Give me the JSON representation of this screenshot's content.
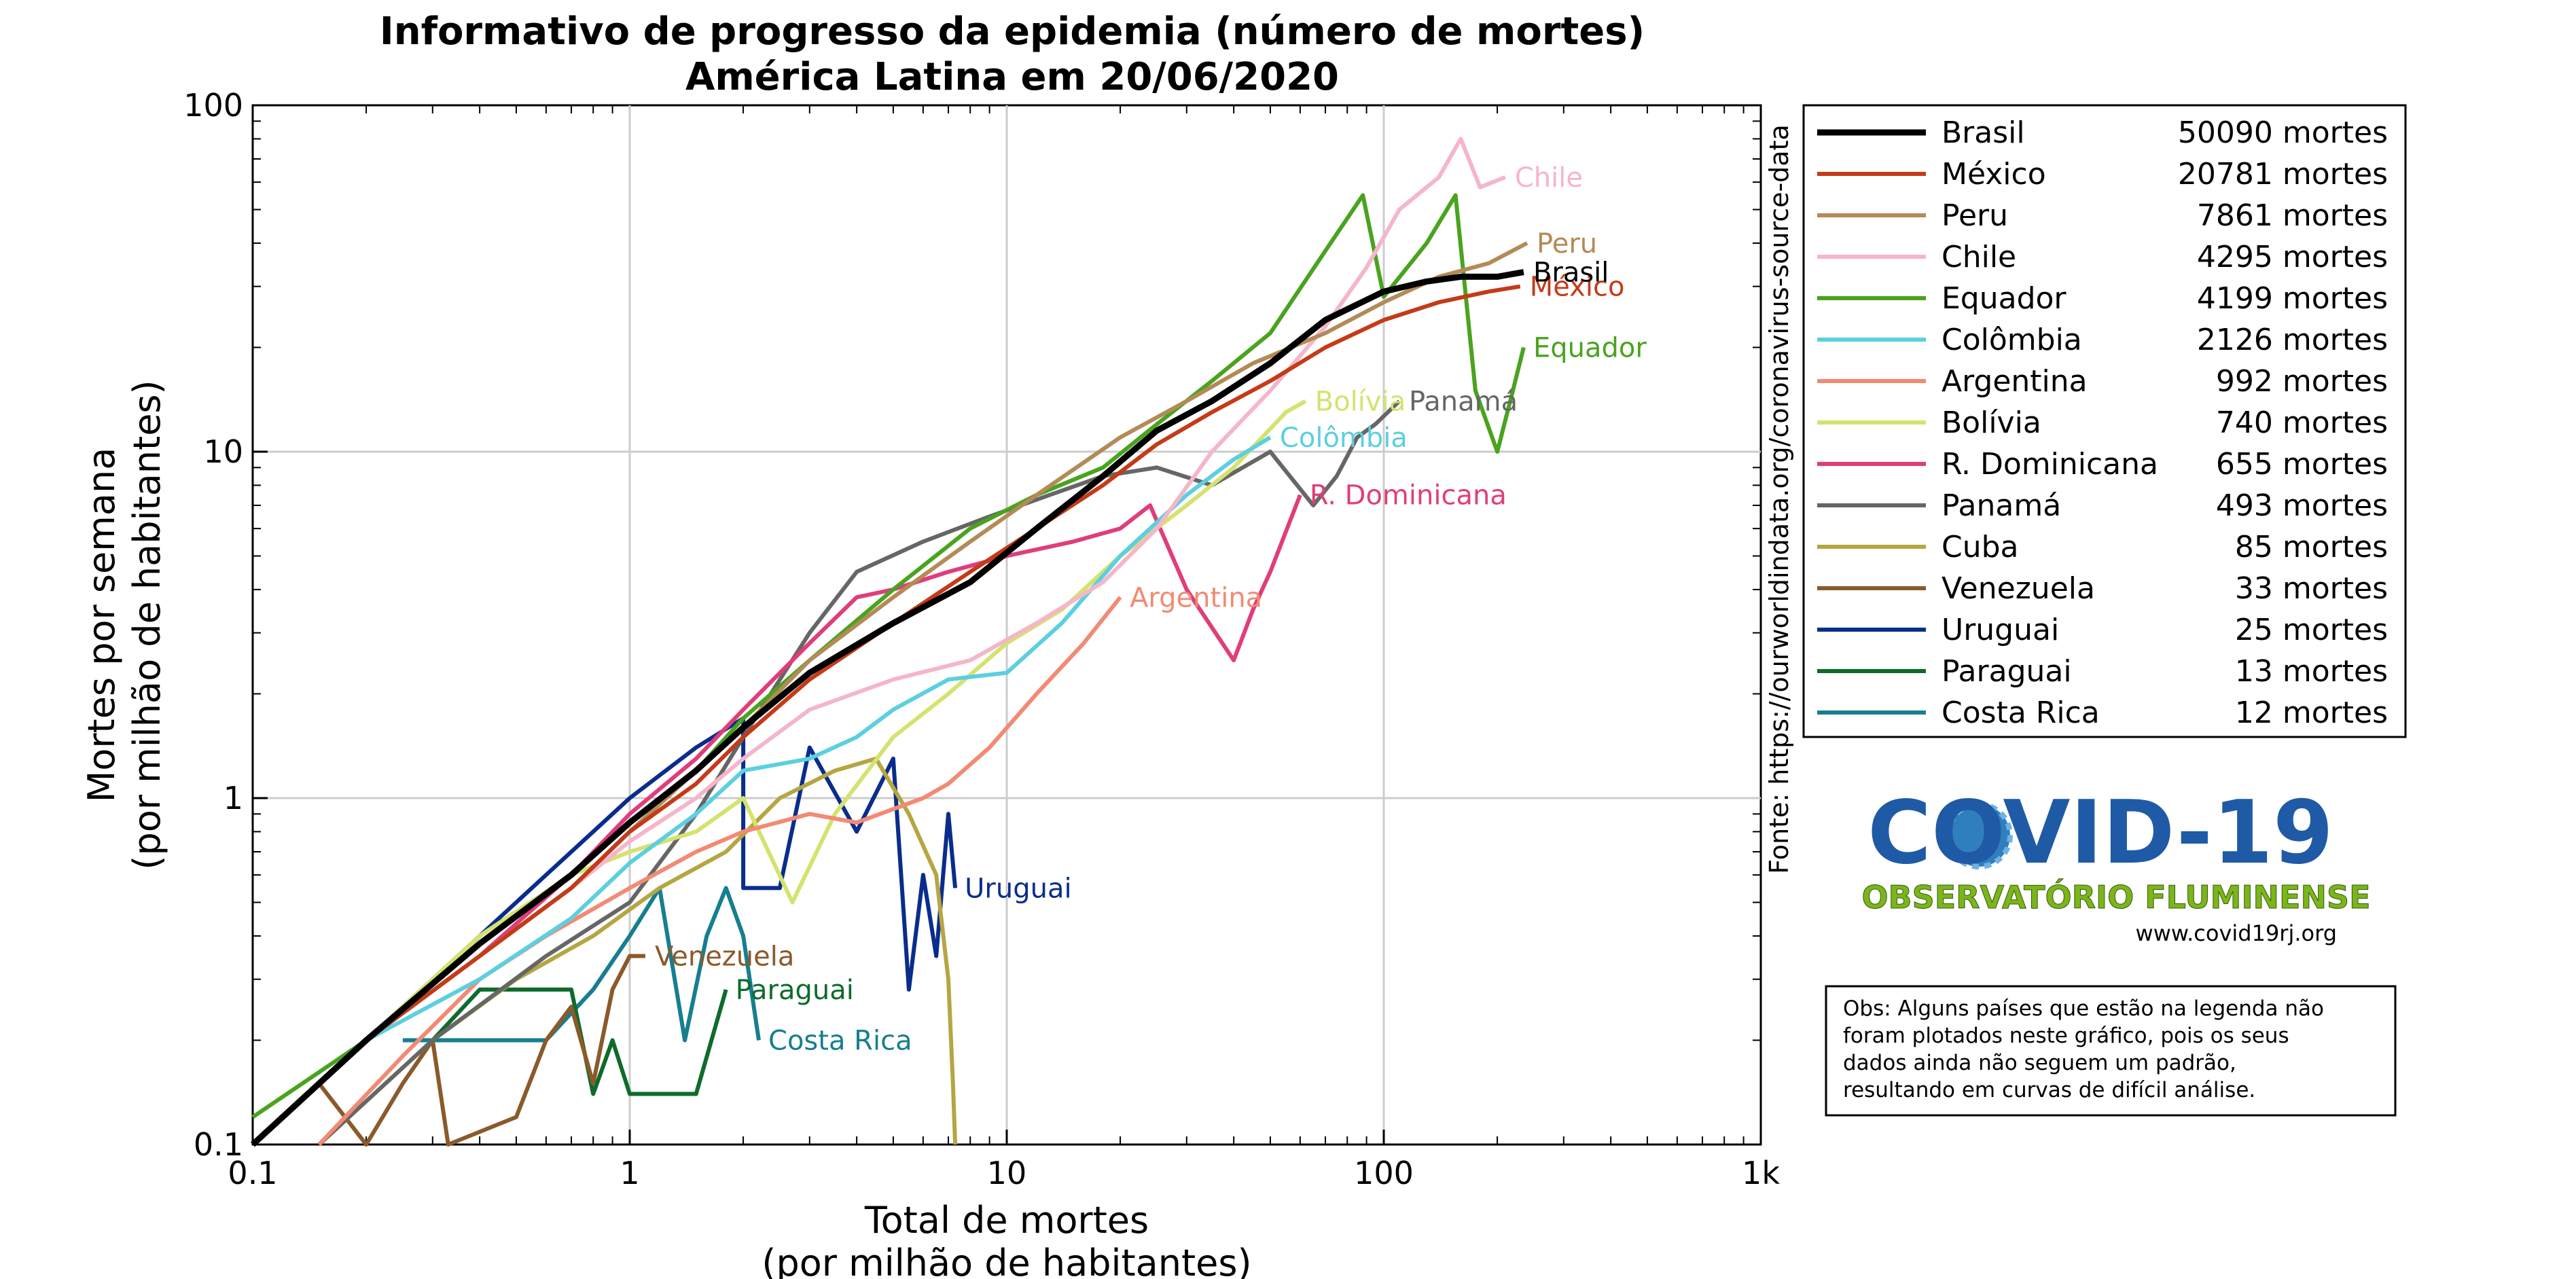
{
  "chart_data": {
    "type": "line",
    "title": "Informativo de progresso da epidemia (número de mortes)",
    "subtitle": "América Latina em 20/06/2020",
    "xlabel": "Total de mortes",
    "xlabel_sub": "(por milhão de habitantes)",
    "ylabel": "Mortes por semana",
    "ylabel_sub": "(por milhão de habitantes)",
    "x_scale": "log",
    "y_scale": "log",
    "xlim": [
      0.1,
      1000
    ],
    "ylim": [
      0.1,
      100
    ],
    "x_ticks": [
      {
        "value": 0.1,
        "label": "0.1"
      },
      {
        "value": 1,
        "label": "1"
      },
      {
        "value": 10,
        "label": "10"
      },
      {
        "value": 100,
        "label": "100"
      },
      {
        "value": 1000,
        "label": "1k"
      }
    ],
    "y_ticks": [
      {
        "value": 0.1,
        "label": "0.1"
      },
      {
        "value": 1,
        "label": "1"
      },
      {
        "value": 10,
        "label": "10"
      },
      {
        "value": 100,
        "label": "100"
      }
    ],
    "grid": true,
    "legend_position": "right",
    "source": "Fonte: https://ourworldindata.org/coronavirus-source-data",
    "series": [
      {
        "name": "Brasil",
        "deaths": "50090 mortes",
        "color": "#000000",
        "end_label": "Brasil",
        "x": [
          0.1,
          0.2,
          0.4,
          0.7,
          1.0,
          1.5,
          2.0,
          3.0,
          5.0,
          8.0,
          12,
          18,
          25,
          35,
          50,
          70,
          100,
          130,
          160,
          200,
          235
        ],
        "y": [
          0.1,
          0.2,
          0.38,
          0.6,
          0.85,
          1.2,
          1.6,
          2.3,
          3.2,
          4.2,
          6.0,
          8.5,
          11.5,
          14,
          18,
          24,
          29,
          31,
          32,
          32,
          33
        ]
      },
      {
        "name": "México",
        "deaths": "20781 mortes",
        "color": "#c43b18",
        "end_label": "México",
        "x": [
          0.1,
          0.2,
          0.4,
          0.7,
          1.0,
          1.5,
          2.0,
          3.0,
          5.0,
          8.0,
          12,
          18,
          25,
          35,
          50,
          70,
          100,
          140,
          190,
          230
        ],
        "y": [
          0.1,
          0.2,
          0.35,
          0.55,
          0.8,
          1.1,
          1.5,
          2.2,
          3.2,
          4.5,
          6.0,
          8.0,
          10.5,
          13,
          16,
          20,
          24,
          27,
          29,
          30
        ]
      },
      {
        "name": "Peru",
        "deaths": "7861 mortes",
        "color": "#b38b57",
        "end_label": "Peru",
        "x": [
          0.1,
          0.2,
          0.4,
          0.7,
          1.0,
          1.5,
          2.0,
          3.0,
          5.0,
          8.0,
          12,
          20,
          30,
          45,
          70,
          100,
          140,
          190,
          240
        ],
        "y": [
          0.1,
          0.2,
          0.35,
          0.55,
          0.8,
          1.2,
          1.6,
          2.5,
          3.8,
          5.5,
          7.5,
          11,
          14,
          18,
          22,
          27,
          32,
          35,
          40
        ]
      },
      {
        "name": "Chile",
        "deaths": "4295 mortes",
        "color": "#f4b6ca",
        "end_label": "Chile",
        "x": [
          0.1,
          0.2,
          0.4,
          0.7,
          1.0,
          1.5,
          2.0,
          3.0,
          5.0,
          8.0,
          12,
          18,
          25,
          35,
          50,
          70,
          90,
          110,
          140,
          160,
          180,
          210
        ],
        "y": [
          0.1,
          0.2,
          0.35,
          0.55,
          0.75,
          1.0,
          1.3,
          1.8,
          2.2,
          2.5,
          3.2,
          4.2,
          6.0,
          10,
          15,
          23,
          34,
          50,
          62,
          80,
          58,
          62
        ]
      },
      {
        "name": "Equador",
        "deaths": "4199 mortes",
        "color": "#4aa31e",
        "end_label": "Equador",
        "x": [
          0.1,
          0.2,
          0.4,
          0.7,
          1.0,
          1.5,
          2.0,
          3.0,
          5.0,
          8.0,
          12,
          18,
          25,
          35,
          50,
          70,
          88,
          100,
          130,
          155,
          175,
          200,
          220,
          235
        ],
        "y": [
          0.12,
          0.2,
          0.35,
          0.55,
          0.8,
          1.2,
          1.7,
          2.5,
          4.0,
          6.0,
          7.5,
          9.0,
          12,
          16,
          22,
          38,
          55,
          28,
          40,
          55,
          15,
          10,
          15,
          20
        ]
      },
      {
        "name": "Colômbia",
        "deaths": "2126 mortes",
        "color": "#5ccfe0",
        "end_label": "Colômbia",
        "x": [
          0.1,
          0.2,
          0.4,
          0.7,
          1.0,
          1.5,
          2.0,
          3.0,
          4.0,
          5.0,
          7.0,
          10,
          14,
          20,
          30,
          40,
          50
        ],
        "y": [
          0.1,
          0.2,
          0.3,
          0.45,
          0.65,
          0.9,
          1.2,
          1.3,
          1.5,
          1.8,
          2.2,
          2.3,
          3.2,
          5.0,
          7.5,
          9.5,
          11
        ]
      },
      {
        "name": "Argentina",
        "deaths": "992 mortes",
        "color": "#f28a74",
        "end_label": "Argentina",
        "x": [
          0.15,
          0.25,
          0.4,
          0.6,
          1.0,
          1.5,
          2.0,
          3.0,
          4.0,
          6.0,
          7.0,
          9.0,
          12,
          16,
          20
        ],
        "y": [
          0.1,
          0.18,
          0.3,
          0.4,
          0.55,
          0.7,
          0.8,
          0.9,
          0.85,
          1.0,
          1.1,
          1.4,
          2.0,
          2.8,
          3.8
        ]
      },
      {
        "name": "Bolívia",
        "deaths": "740 mortes",
        "color": "#d5e26f",
        "end_label": "Bolívia",
        "x": [
          0.2,
          0.4,
          0.7,
          1.0,
          1.5,
          2.0,
          2.7,
          3.5,
          5.0,
          7.0,
          10,
          14,
          20,
          30,
          40,
          55,
          62
        ],
        "y": [
          0.2,
          0.4,
          0.6,
          0.7,
          0.8,
          1.0,
          0.5,
          0.9,
          1.5,
          2.0,
          2.8,
          3.5,
          5.0,
          7.0,
          9.0,
          13,
          14
        ]
      },
      {
        "name": "R. Dominicana",
        "deaths": "655 mortes",
        "color": "#e03d7b",
        "end_label": "R. Dominicana",
        "x": [
          0.2,
          0.4,
          0.7,
          1.0,
          1.5,
          2.0,
          3.0,
          4.0,
          5.0,
          7.0,
          10,
          15,
          20,
          24,
          30,
          40,
          45,
          50,
          60
        ],
        "y": [
          0.2,
          0.35,
          0.6,
          0.9,
          1.3,
          1.8,
          2.8,
          3.8,
          4.0,
          4.5,
          5.0,
          5.5,
          6.0,
          7.0,
          4.0,
          2.5,
          3.5,
          4.5,
          7.5
        ]
      },
      {
        "name": "Panamá",
        "deaths": "493 mortes",
        "color": "#666666",
        "end_label": "Panamá",
        "x": [
          0.15,
          0.3,
          0.6,
          1.0,
          1.5,
          2.0,
          3.0,
          4.0,
          6.0,
          9.0,
          13,
          18,
          25,
          35,
          50,
          65,
          75,
          85,
          95,
          110
        ],
        "y": [
          0.1,
          0.2,
          0.35,
          0.5,
          0.9,
          1.5,
          3.0,
          4.5,
          5.5,
          6.5,
          7.5,
          8.5,
          9.0,
          8.0,
          10,
          7.0,
          8.5,
          11,
          12,
          14
        ]
      },
      {
        "name": "Cuba",
        "deaths": "85 mortes",
        "color": "#b5a642",
        "end_label": "",
        "x": [
          0.15,
          0.3,
          0.5,
          0.8,
          1.2,
          1.8,
          2.5,
          3.5,
          4.5,
          5.5,
          6.5,
          7.0,
          7.2,
          7.3
        ],
        "y": [
          0.1,
          0.2,
          0.3,
          0.4,
          0.55,
          0.7,
          1.0,
          1.2,
          1.3,
          0.9,
          0.6,
          0.3,
          0.15,
          0.1
        ]
      },
      {
        "name": "Venezuela",
        "deaths": "33 mortes",
        "color": "#8b5a2b",
        "end_label": "Venezuela",
        "x": [
          0.1,
          0.15,
          0.2,
          0.25,
          0.3,
          0.33,
          0.5,
          0.6,
          0.7,
          0.8,
          0.9,
          1.0,
          1.1
        ],
        "y": [
          0.1,
          0.15,
          0.1,
          0.15,
          0.2,
          0.1,
          0.12,
          0.2,
          0.25,
          0.15,
          0.28,
          0.35,
          0.35
        ]
      },
      {
        "name": "Uruguai",
        "deaths": "25 mortes",
        "color": "#0a2d8c",
        "end_label": "Uruguai",
        "x": [
          0.12,
          0.3,
          0.6,
          1.0,
          1.5,
          2.0,
          2.0,
          2.5,
          3.0,
          4.0,
          5.0,
          5.5,
          6.0,
          6.5,
          7.0,
          7.3
        ],
        "y": [
          0.12,
          0.3,
          0.6,
          1.0,
          1.4,
          1.7,
          0.55,
          0.55,
          1.4,
          0.8,
          1.3,
          0.28,
          0.6,
          0.35,
          0.9,
          0.55
        ]
      },
      {
        "name": "Paraguai",
        "deaths": "13 mortes",
        "color": "#0e6b2c",
        "end_label": "Paraguai",
        "x": [
          0.3,
          0.4,
          0.55,
          0.7,
          0.8,
          0.9,
          1.0,
          1.2,
          1.5,
          1.8
        ],
        "y": [
          0.2,
          0.28,
          0.28,
          0.28,
          0.14,
          0.2,
          0.14,
          0.14,
          0.14,
          0.28
        ]
      },
      {
        "name": "Costa Rica",
        "deaths": "12 mortes",
        "color": "#177e90",
        "end_label": "Costa Rica",
        "x": [
          0.25,
          0.4,
          0.6,
          0.8,
          1.0,
          1.2,
          1.4,
          1.6,
          1.8,
          2.0,
          2.2
        ],
        "y": [
          0.2,
          0.2,
          0.2,
          0.28,
          0.4,
          0.55,
          0.2,
          0.4,
          0.55,
          0.4,
          0.2
        ]
      }
    ]
  },
  "logo": {
    "text": "COVID-19",
    "subtitle": "OBSERVATÓRIO FLUMINENSE",
    "url": "www.covid19rj.org",
    "text_color": "#1f5aa6",
    "subtitle_color": "#7cb518"
  },
  "note": {
    "lines": [
      "Obs: Alguns países que estão na legenda não",
      "foram plotados neste gráfico, pois os seus",
      "dados ainda não seguem um padrão,",
      "resultando em curvas de difícil análise."
    ]
  }
}
